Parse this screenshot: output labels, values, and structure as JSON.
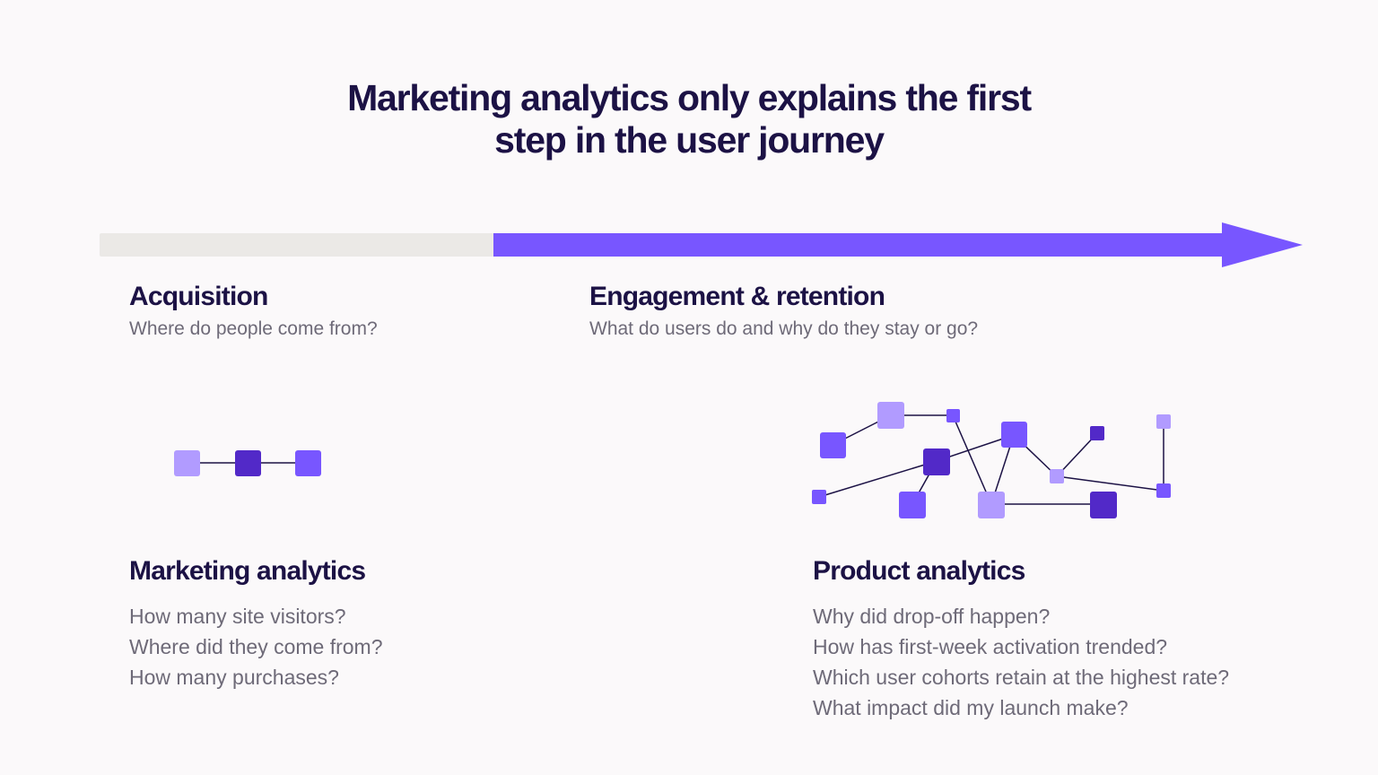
{
  "title": {
    "line1": "Marketing analytics only explains the first",
    "line2": "step in the user journey"
  },
  "colors": {
    "arrow_grey": "#ebe9e6",
    "arrow_purple": "#7856ff",
    "node_light": "#b19bff",
    "node_mid": "#7856ff",
    "node_dark": "#5229c8",
    "edge": "#1c1245",
    "heading": "#1c1245",
    "text": "#6e6a78"
  },
  "stages": {
    "acquisition": {
      "title": "Acquisition",
      "subtitle": "Where do people come from?"
    },
    "engagement": {
      "title": "Engagement & retention",
      "subtitle": "What do users do and why do they stay or go?"
    }
  },
  "marketing": {
    "title": "Marketing analytics",
    "questions": [
      "How many site visitors?",
      "Where did they come from?",
      "How many purchases?"
    ]
  },
  "product": {
    "title": "Product analytics",
    "questions": [
      "Why did drop-off happen?",
      "How has first-week activation trended?",
      "Which user cohorts retain at the highest rate?",
      "What impact did my launch make?"
    ]
  }
}
